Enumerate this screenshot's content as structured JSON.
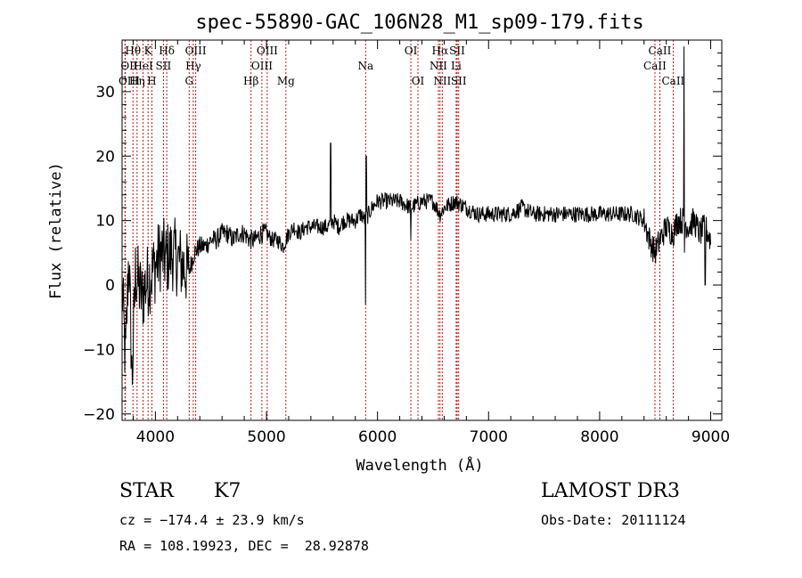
{
  "chart_data": {
    "type": "line",
    "title": "spec-55890-GAC_106N28_M1_sp09-179.fits",
    "xlabel": "Wavelength (Å)",
    "ylabel": "Flux (relative)",
    "xlim": [
      3700,
      9100
    ],
    "ylim": [
      -21,
      38
    ],
    "x_ticks": [
      4000,
      5000,
      6000,
      7000,
      8000,
      9000
    ],
    "y_ticks": [
      -20,
      -10,
      0,
      10,
      20,
      30
    ],
    "grid": false,
    "legend": "none",
    "series": [
      {
        "x": [
          3700,
          3730,
          3760,
          3790,
          3820,
          3850,
          3880,
          3910,
          3940,
          3970,
          4000,
          4050,
          4100,
          4150,
          4200,
          4250,
          4300,
          4350,
          4400,
          4450,
          4500,
          4550,
          4600,
          4650,
          4700,
          4750,
          4800,
          4850,
          4900,
          4950,
          5000,
          5050,
          5100,
          5150,
          5200,
          5250,
          5300,
          5350,
          5400,
          5450,
          5500,
          5550,
          5600,
          5650,
          5700,
          5750,
          5800,
          5850,
          5890,
          5950,
          6000,
          6100,
          6200,
          6300,
          6400,
          6500,
          6563,
          6600,
          6700,
          6800,
          6900,
          7000,
          7100,
          7200,
          7300,
          7400,
          7500,
          7600,
          7700,
          7800,
          7900,
          8000,
          8100,
          8200,
          8300,
          8400,
          8450,
          8498,
          8542,
          8600,
          8662,
          8700,
          8750,
          8800,
          8850,
          8900,
          8950,
          9000
        ],
        "y": [
          0,
          -12,
          5,
          -15,
          2,
          0,
          -2,
          0,
          1,
          2,
          3,
          5,
          4,
          5,
          4,
          3,
          2,
          5,
          6,
          6,
          7,
          7,
          8,
          8,
          7,
          8,
          8,
          7,
          7,
          8,
          8,
          7,
          7,
          6,
          8,
          9,
          8,
          9,
          9,
          9,
          9,
          9,
          10,
          9,
          10,
          10,
          10,
          11,
          10,
          12,
          13,
          13,
          13,
          12,
          13,
          13,
          11,
          12,
          13,
          12,
          11,
          11,
          11,
          11,
          12,
          11,
          11,
          11,
          11,
          11,
          11,
          11,
          11,
          11,
          11,
          10,
          7,
          5,
          7,
          9,
          8,
          10,
          10,
          9,
          10,
          8,
          9,
          7
        ]
      }
    ],
    "annotations": [
      {
        "label": "Hθ",
        "wavelength": 3798
      },
      {
        "label": "OII",
        "wavelength": 3727
      },
      {
        "label": "OIII",
        "wavelength": 3727
      },
      {
        "label": "K",
        "wavelength": 3934
      },
      {
        "label": "HeI",
        "wavelength": 3889
      },
      {
        "label": "Hη",
        "wavelength": 3835
      },
      {
        "label": "SII",
        "wavelength": 4072
      },
      {
        "label": "H",
        "wavelength": 3968
      },
      {
        "label": "Hδ",
        "wavelength": 4102
      },
      {
        "label": "OIII",
        "wavelength": 4363
      },
      {
        "label": "Hγ",
        "wavelength": 4341
      },
      {
        "label": "G",
        "wavelength": 4304
      },
      {
        "label": "OIII",
        "wavelength": 5007
      },
      {
        "label": "OIII",
        "wavelength": 4959
      },
      {
        "label": "Hβ",
        "wavelength": 4861
      },
      {
        "label": "Mg",
        "wavelength": 5175
      },
      {
        "label": "Na",
        "wavelength": 5893
      },
      {
        "label": "OI",
        "wavelength": 6300
      },
      {
        "label": "OI",
        "wavelength": 6364
      },
      {
        "label": "Hα",
        "wavelength": 6563
      },
      {
        "label": "NII",
        "wavelength": 6548
      },
      {
        "label": "NII",
        "wavelength": 6583
      },
      {
        "label": "SII",
        "wavelength": 6717
      },
      {
        "label": "Li",
        "wavelength": 6708
      },
      {
        "label": "SII",
        "wavelength": 6731
      },
      {
        "label": "CaII",
        "wavelength": 8498
      },
      {
        "label": "CaII",
        "wavelength": 8542
      },
      {
        "label": "CaII",
        "wavelength": 8662
      }
    ]
  },
  "info": {
    "object_class": "STAR",
    "subclass": "K7",
    "survey": "LAMOST DR3",
    "cz": "cz = −174.4 ± 23.9 km/s",
    "obs_date": "Obs-Date: 20111124",
    "coords": "RA = 108.19923, DEC =  28.92878"
  }
}
